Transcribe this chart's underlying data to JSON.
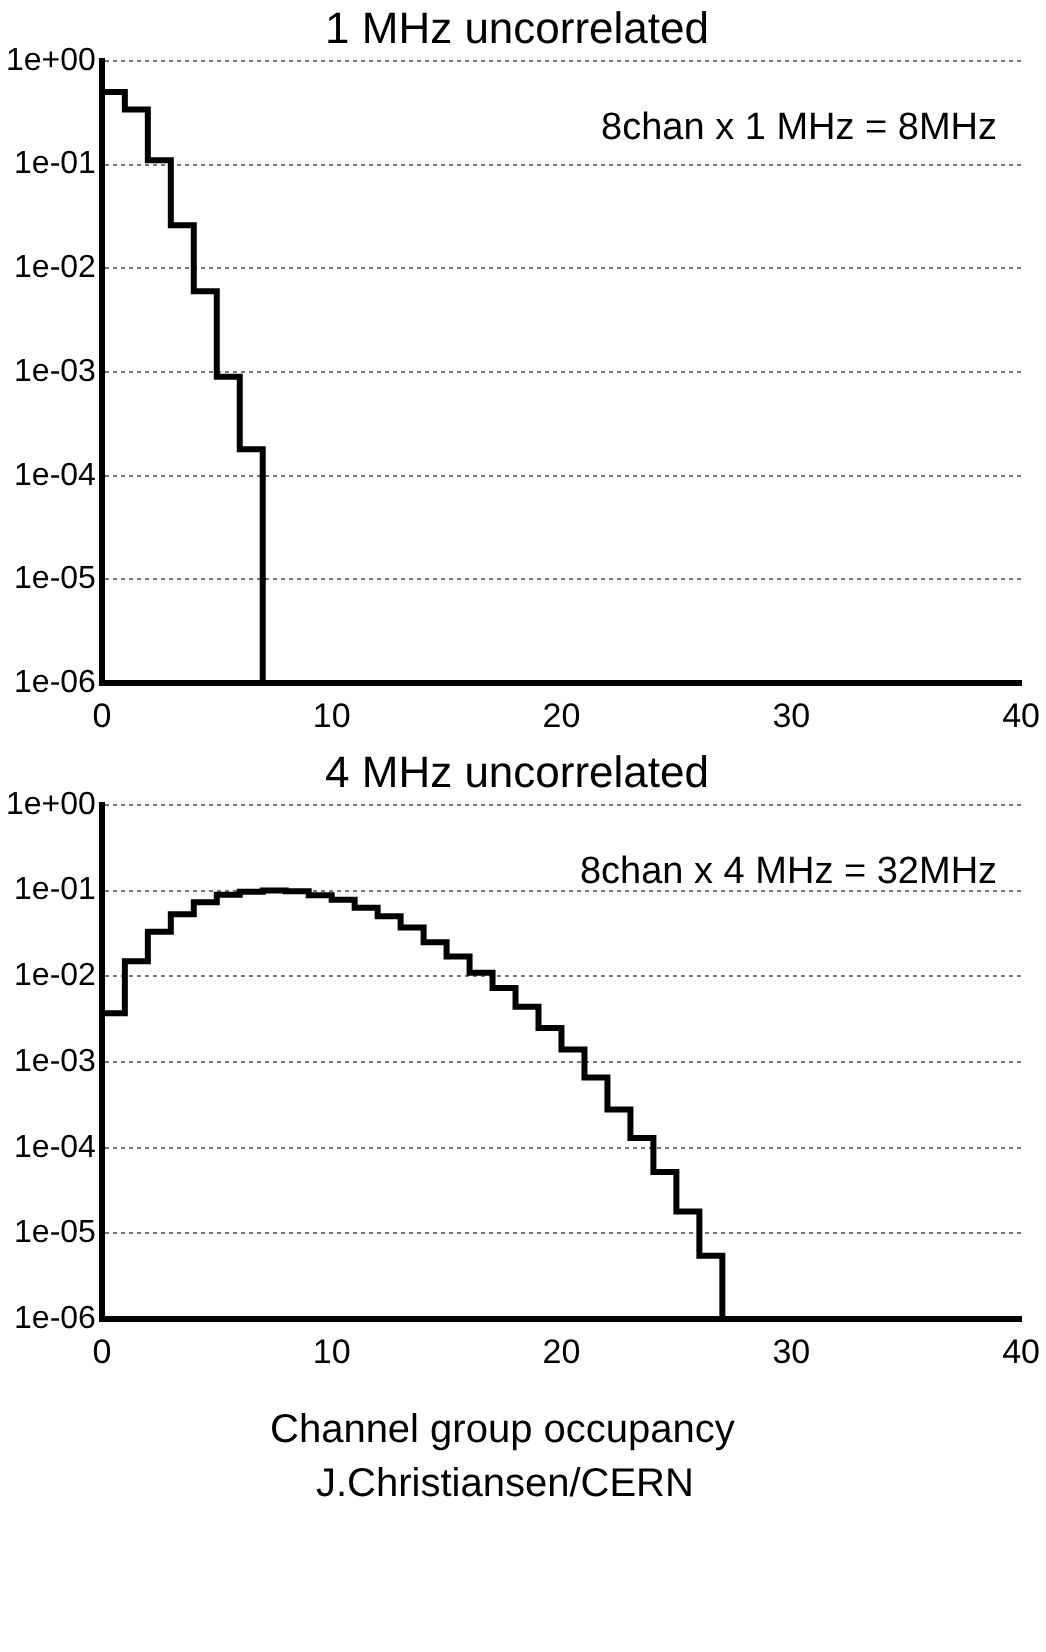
{
  "chart_data": [
    {
      "type": "histogram",
      "title": "1 MHz uncorrelated",
      "color": "#000000",
      "log": true,
      "grid": "y",
      "xlim": [
        0,
        40
      ],
      "xticks": [
        0,
        10,
        20,
        30,
        40
      ],
      "ylim": [
        1e-06,
        1
      ],
      "yticks": [
        {
          "value": 1e-06,
          "label": "1e-06"
        },
        {
          "value": 1e-05,
          "label": "1e-05"
        },
        {
          "value": 0.0001,
          "label": "1e-04"
        },
        {
          "value": 0.001,
          "label": "1e-03"
        },
        {
          "value": 0.01,
          "label": "1e-02"
        },
        {
          "value": 0.1,
          "label": "1e-01"
        },
        {
          "value": 1,
          "label": "1e+00"
        }
      ],
      "bins": [
        0,
        1,
        2,
        3,
        4,
        5,
        6,
        7,
        8,
        9,
        10,
        11,
        12,
        13,
        14,
        15,
        16,
        17,
        18,
        19,
        20,
        21,
        22,
        23,
        24,
        25,
        26,
        27,
        28,
        29,
        30,
        31,
        32,
        33
      ],
      "values": [
        0.5,
        0.34,
        0.11,
        0.026,
        0.006,
        0.0009,
        0.00018,
        1e-06,
        1e-06,
        1e-06,
        1e-06,
        1e-06,
        1e-06,
        1e-06,
        1e-06,
        1e-06,
        1e-06,
        1e-06,
        1e-06,
        1e-06,
        1e-06,
        1e-06,
        1e-06,
        1e-06,
        1e-06,
        1e-06,
        1e-06,
        1e-06,
        1e-06,
        1e-06,
        1e-06,
        1e-06,
        1e-06
      ],
      "annotations": [
        "8chan x 1 MHz = 8MHz"
      ]
    },
    {
      "type": "histogram",
      "title": "4 MHz uncorrelated",
      "xlabel": "Channel group occupancy",
      "color": "#000000",
      "log": true,
      "grid": "y",
      "xlim": [
        0,
        40
      ],
      "xticks": [
        0,
        10,
        20,
        30,
        40
      ],
      "ylim": [
        1e-06,
        1
      ],
      "yticks": [
        {
          "value": 1e-06,
          "label": "1e-06"
        },
        {
          "value": 1e-05,
          "label": "1e-05"
        },
        {
          "value": 0.0001,
          "label": "1e-04"
        },
        {
          "value": 0.001,
          "label": "1e-03"
        },
        {
          "value": 0.01,
          "label": "1e-02"
        },
        {
          "value": 0.1,
          "label": "1e-01"
        },
        {
          "value": 1,
          "label": "1e+00"
        }
      ],
      "bins": [
        0,
        1,
        2,
        3,
        4,
        5,
        6,
        7,
        8,
        9,
        10,
        11,
        12,
        13,
        14,
        15,
        16,
        17,
        18,
        19,
        20,
        21,
        22,
        23,
        24,
        25,
        26,
        27,
        28,
        29,
        30,
        31,
        32,
        33
      ],
      "values": [
        0.0037,
        0.015,
        0.033,
        0.053,
        0.073,
        0.089,
        0.097,
        0.1,
        0.098,
        0.088,
        0.078,
        0.063,
        0.05,
        0.037,
        0.025,
        0.017,
        0.011,
        0.0073,
        0.0044,
        0.0025,
        0.0014,
        0.00066,
        0.00028,
        0.00013,
        5.2e-05,
        1.8e-05,
        5.5e-06,
        1e-06,
        1e-06,
        1e-06,
        1e-06,
        1e-06,
        1e-06
      ],
      "annotations": [
        "8chan x 4 MHz = 32MHz",
        "J.Christiansen/CERN"
      ]
    }
  ]
}
